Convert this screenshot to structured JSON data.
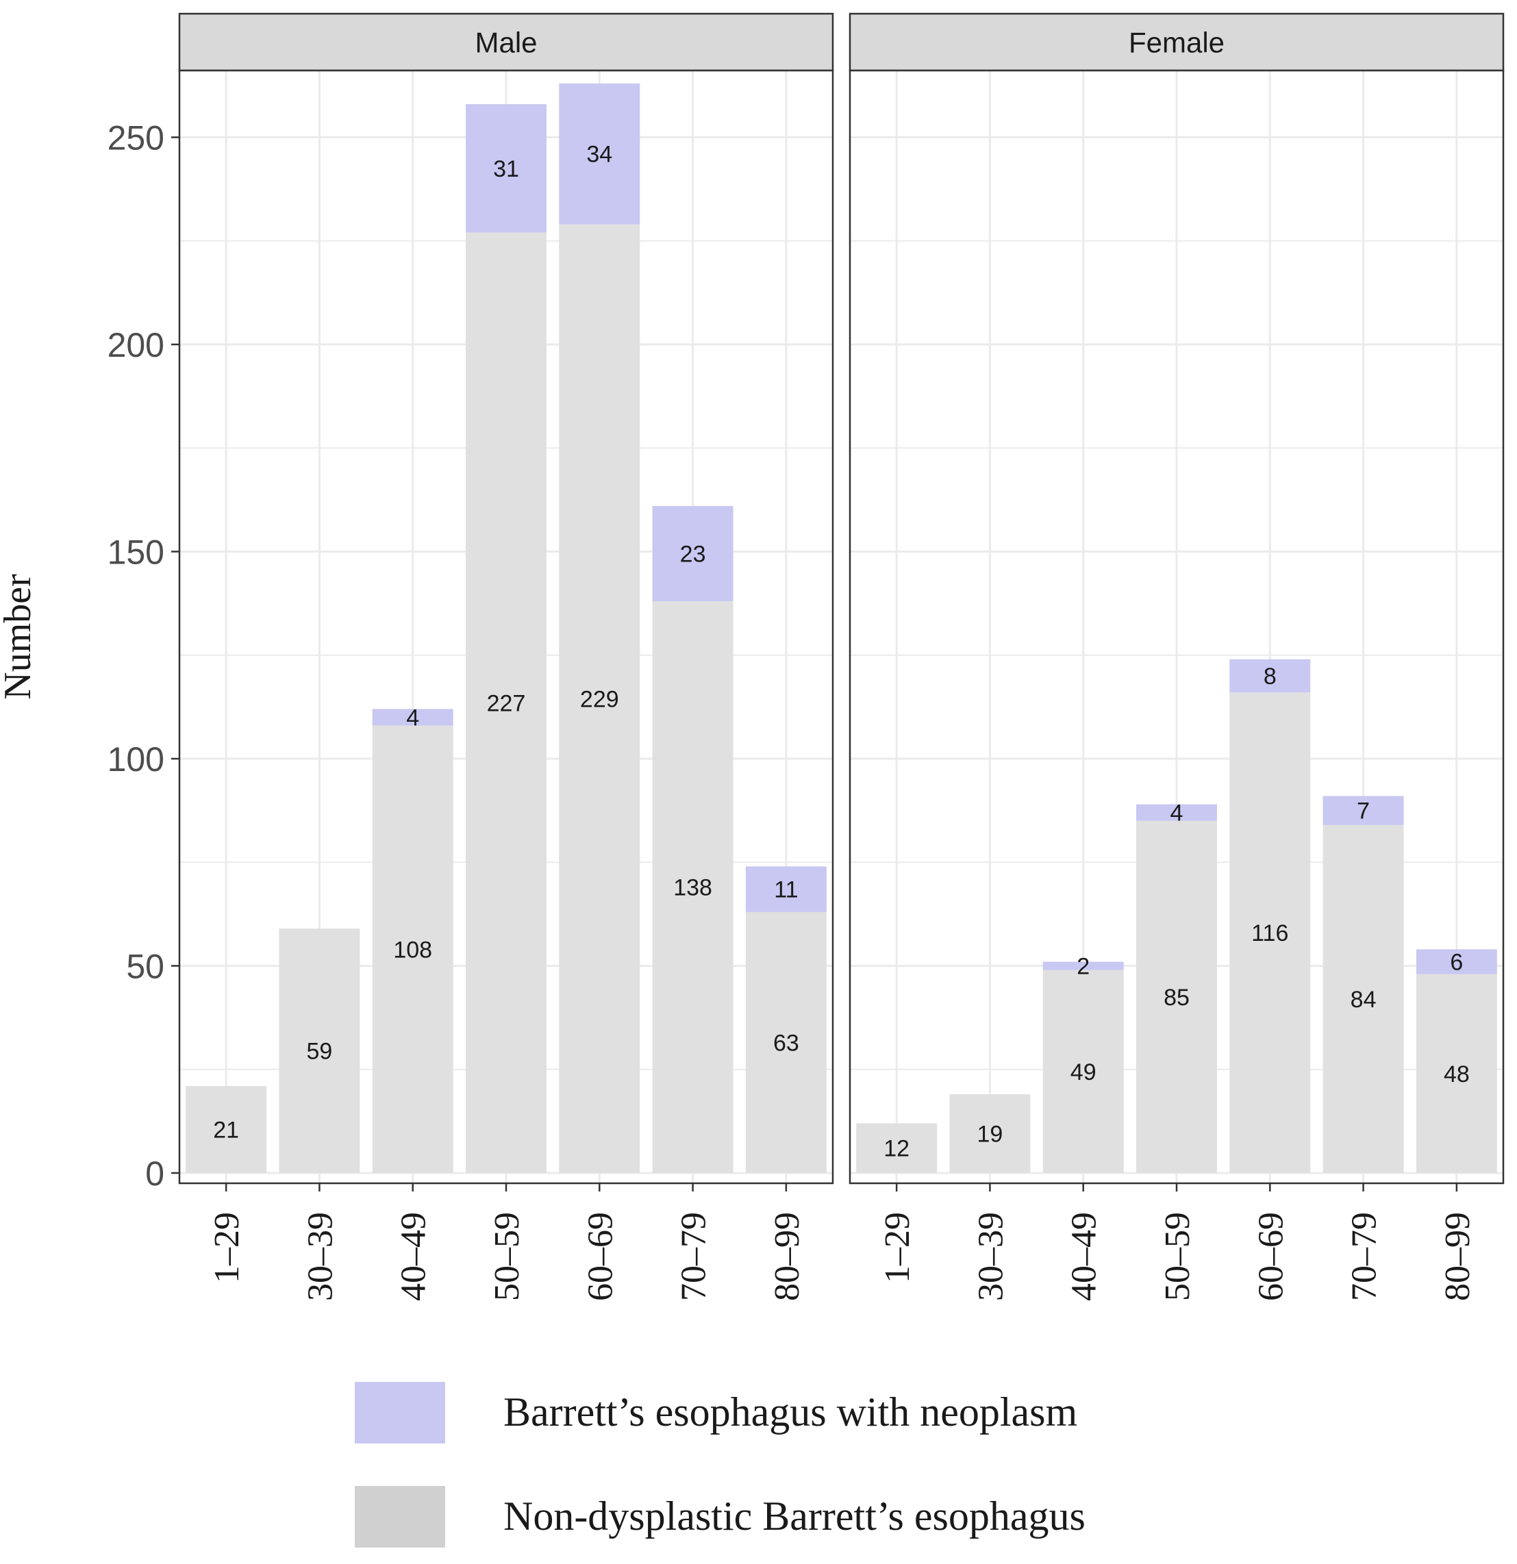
{
  "colors": {
    "neoplasm": "#c8c8f2",
    "nondysplastic": "#e0e0e0",
    "grid": "#ebebeb",
    "strip": "#d9d9d9",
    "axis_text": "#4d4d4d",
    "legend_nondysplastic": "#d0d0d0"
  },
  "chart_data": {
    "type": "bar",
    "stacked": true,
    "ylabel": "Number",
    "ylim": [
      0,
      265
    ],
    "yticks": [
      0,
      50,
      100,
      150,
      200,
      250
    ],
    "categories": [
      "1–29",
      "30–39",
      "40–49",
      "50–59",
      "60–69",
      "70–79",
      "80–99"
    ],
    "legend": [
      {
        "key": "neoplasm",
        "label": "Barrett’s esophagus with neoplasm"
      },
      {
        "key": "nondysplastic",
        "label": "Non-dysplastic Barrett’s esophagus"
      }
    ],
    "panels": [
      {
        "title": "Male",
        "series": [
          {
            "name": "Non-dysplastic Barrett’s esophagus",
            "key": "nondysplastic",
            "values": [
              21,
              59,
              108,
              227,
              229,
              138,
              63
            ]
          },
          {
            "name": "Barrett’s esophagus with neoplasm",
            "key": "neoplasm",
            "values": [
              null,
              null,
              4,
              31,
              34,
              23,
              11
            ]
          }
        ]
      },
      {
        "title": "Female",
        "series": [
          {
            "name": "Non-dysplastic Barrett’s esophagus",
            "key": "nondysplastic",
            "values": [
              12,
              19,
              49,
              85,
              116,
              84,
              48
            ]
          },
          {
            "name": "Barrett’s esophagus with neoplasm",
            "key": "neoplasm",
            "values": [
              null,
              null,
              2,
              4,
              8,
              7,
              6
            ]
          }
        ]
      }
    ]
  }
}
